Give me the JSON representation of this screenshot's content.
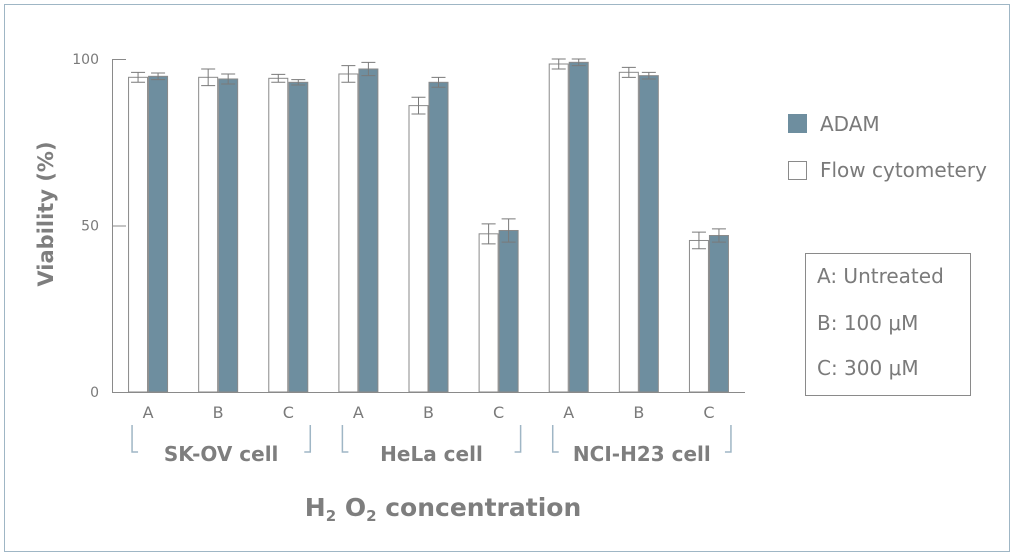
{
  "chart_data": {
    "type": "bar",
    "ylabel": "Viability (%)",
    "xlabel": {
      "prefix": "H",
      "sub1": "2",
      "mid": " O",
      "sub2": "2",
      "suffix": " concentration"
    },
    "ylim": [
      0,
      100
    ],
    "yticks": [
      0,
      50,
      100
    ],
    "groups": [
      {
        "label": "SK-OV cell",
        "categories": [
          "A",
          "B",
          "C"
        ]
      },
      {
        "label": "HeLa cell",
        "categories": [
          "A",
          "B",
          "C"
        ]
      },
      {
        "label": "NCI-H23 cell",
        "categories": [
          "A",
          "B",
          "C"
        ]
      }
    ],
    "series": [
      {
        "name": "Flow cytometery",
        "color": "#ffffff",
        "values": [
          94.5,
          94.5,
          94.2,
          95.5,
          86,
          47.5,
          98.5,
          96,
          45.5
        ],
        "errors": [
          1.5,
          2.5,
          1.2,
          2.5,
          2.5,
          3,
          1.5,
          1.5,
          2.5
        ]
      },
      {
        "name": "ADAM",
        "color": "#6e8e9f",
        "values": [
          94.8,
          94,
          93,
          97,
          93,
          48.5,
          99,
          95,
          47
        ],
        "errors": [
          1,
          1.5,
          0.8,
          2,
          1.5,
          3.5,
          1,
          1,
          2
        ]
      }
    ],
    "legend": [
      "ADAM",
      "Flow cytometery"
    ],
    "key": [
      "A: Untreated",
      "B: 100 μM",
      "C: 300 μM"
    ]
  }
}
